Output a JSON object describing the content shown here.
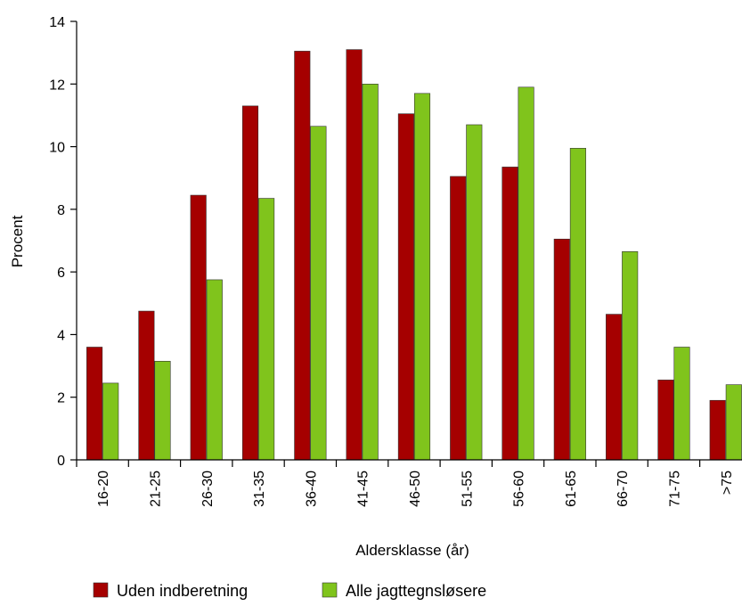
{
  "chart_data": {
    "type": "bar",
    "title": "",
    "xlabel": "Aldersklasse (år)",
    "ylabel": "Procent",
    "ylim": [
      0,
      14
    ],
    "yticks": [
      0,
      2,
      4,
      6,
      8,
      10,
      12,
      14
    ],
    "grid": false,
    "legend_position": "bottom",
    "categories": [
      "16-20",
      "21-25",
      "26-30",
      "31-35",
      "36-40",
      "41-45",
      "46-50",
      "51-55",
      "56-60",
      "61-65",
      "66-70",
      "71-75",
      ">75"
    ],
    "series": [
      {
        "name": "Uden indberetning",
        "color": "#a50000",
        "values": [
          3.6,
          4.75,
          8.45,
          11.3,
          13.05,
          13.1,
          11.05,
          9.05,
          9.35,
          7.05,
          4.65,
          2.55,
          1.9
        ]
      },
      {
        "name": "Alle jagttegnsløsere",
        "color": "#80c41c",
        "values": [
          2.45,
          3.15,
          5.75,
          8.35,
          10.65,
          12.0,
          11.7,
          10.7,
          11.9,
          9.95,
          6.65,
          3.6,
          2.4
        ]
      }
    ]
  }
}
